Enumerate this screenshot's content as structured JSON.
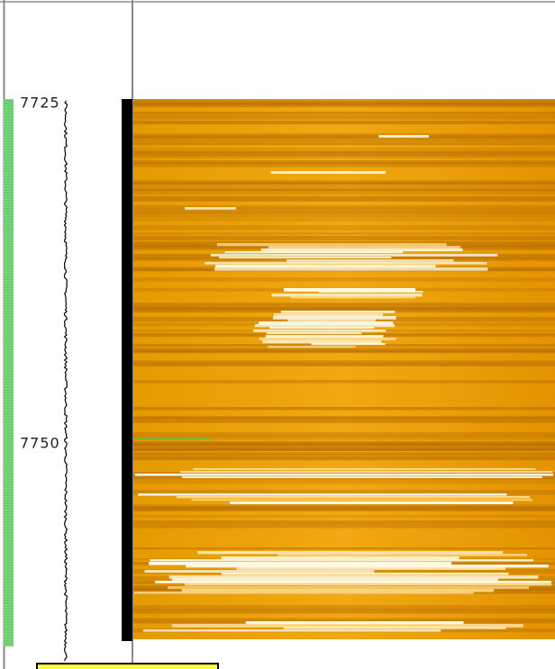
{
  "depth_track": {
    "labels": [
      "7725",
      "7750"
    ]
  }
}
